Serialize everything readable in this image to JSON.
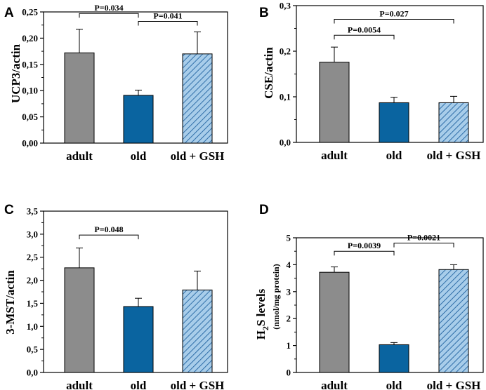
{
  "colors": {
    "adult": "#8c8c8c",
    "old": "#0a64a0",
    "gsh_fill": "#a8cdea",
    "gsh_hatch": "#2f6ea8",
    "axis": "#000000"
  },
  "chart_data": [
    {
      "type": "bar",
      "panel": "A",
      "categories": [
        "adult",
        "old",
        "old + GSH"
      ],
      "values": [
        0.172,
        0.091,
        0.17
      ],
      "errors": [
        0.045,
        0.01,
        0.042
      ],
      "ylabel": "UCP3/actin",
      "ylim": [
        0,
        0.25
      ],
      "yticks": [
        "0,00",
        "0,05",
        "0,10",
        "0,15",
        "0,20",
        "0,25"
      ],
      "comparisons": [
        {
          "from": 0,
          "to": 1,
          "label": "P=0.034",
          "y": 0.247
        },
        {
          "from": 1,
          "to": 2,
          "label": "P=0.041",
          "y": 0.232
        }
      ]
    },
    {
      "type": "bar",
      "panel": "B",
      "categories": [
        "adult",
        "old",
        "old + GSH"
      ],
      "values": [
        0.176,
        0.087,
        0.087
      ],
      "errors": [
        0.033,
        0.012,
        0.014
      ],
      "ylabel": "CSE/actin",
      "ylim": [
        0,
        0.3
      ],
      "yticks": [
        "0,0",
        "0,1",
        "0,2",
        "0,3"
      ],
      "comparisons": [
        {
          "from": 0,
          "to": 2,
          "label": "P=0.027",
          "y": 0.27
        },
        {
          "from": 0,
          "to": 1,
          "label": "P=0.0054",
          "y": 0.235
        }
      ]
    },
    {
      "type": "bar",
      "panel": "C",
      "categories": [
        "adult",
        "old",
        "old + GSH"
      ],
      "values": [
        2.27,
        1.43,
        1.79
      ],
      "errors": [
        0.43,
        0.18,
        0.41
      ],
      "ylabel": "3-MST/actin",
      "ylim": [
        0,
        3.5
      ],
      "yticks": [
        "0,0",
        "0,5",
        "1,0",
        "1,5",
        "2,0",
        "2,5",
        "3,0",
        "3,5"
      ],
      "comparisons": [
        {
          "from": 0,
          "to": 1,
          "label": "P=0.048",
          "y": 2.98
        }
      ]
    },
    {
      "type": "bar",
      "panel": "D",
      "categories": [
        "adult",
        "old",
        "old + GSH"
      ],
      "values": [
        3.72,
        1.03,
        3.82
      ],
      "errors": [
        0.2,
        0.08,
        0.18
      ],
      "ylabel_main": "H",
      "ylabel_sub": "2",
      "ylabel_rest": "S levels",
      "ylabel_units": "(nmol/mg protein)",
      "ylim": [
        0,
        5
      ],
      "yticks": [
        "0",
        "1",
        "2",
        "3",
        "4",
        "5"
      ],
      "comparisons": [
        {
          "from": 0,
          "to": 1,
          "label": "P=0.0039",
          "y": 4.5
        },
        {
          "from": 1,
          "to": 2,
          "label": "P=0.0021",
          "y": 4.8
        }
      ]
    }
  ]
}
